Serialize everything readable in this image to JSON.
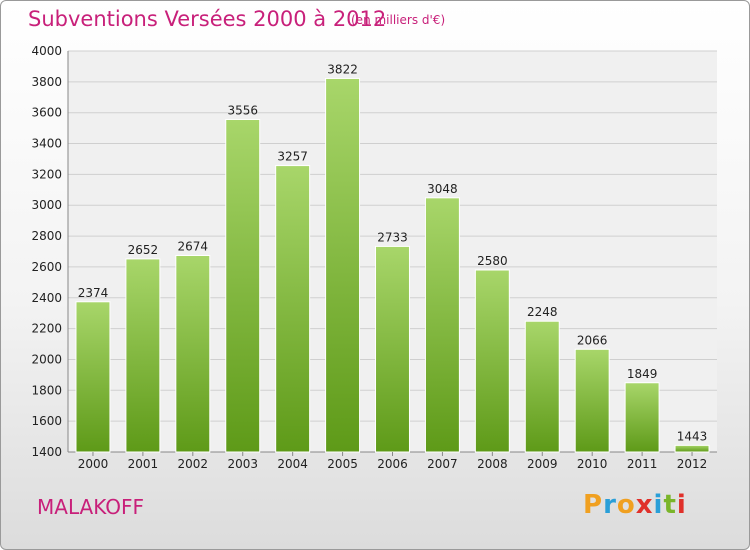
{
  "header": {
    "title": "Subventions Versées 2000 à 2012",
    "subtitle": "(en milliers d'€)"
  },
  "footer": {
    "city": "MALAKOFF",
    "logo": {
      "letters": [
        "P",
        "r",
        "o",
        "x",
        "i",
        "t",
        "i"
      ],
      "colors": [
        "#f0a020",
        "#2a9fd8",
        "#f0a020",
        "#e0302a",
        "#2a9fd8",
        "#7ab52a",
        "#e0302a"
      ]
    }
  },
  "colors": {
    "bar_top": "#a8d66a",
    "bar_bottom": "#5e9a18",
    "grid": "#cfcfcf",
    "plot_bg": "#f0f0f0",
    "text": "#222222"
  },
  "chart_data": {
    "type": "bar",
    "title": "Subventions Versées 2000 à 2012",
    "subtitle": "(en milliers d'€)",
    "xlabel": "",
    "ylabel": "",
    "categories": [
      "2000",
      "2001",
      "2002",
      "2003",
      "2004",
      "2005",
      "2006",
      "2007",
      "2008",
      "2009",
      "2010",
      "2011",
      "2012"
    ],
    "values": [
      2374,
      2652,
      2674,
      3556,
      3257,
      3822,
      2733,
      3048,
      2580,
      2248,
      2066,
      1849,
      1443
    ],
    "ylim": [
      1400,
      4000
    ],
    "yticks": [
      1400,
      1600,
      1800,
      2000,
      2200,
      2400,
      2600,
      2800,
      3000,
      3200,
      3400,
      3600,
      3800,
      4000
    ],
    "grid": true,
    "legend": "none"
  }
}
